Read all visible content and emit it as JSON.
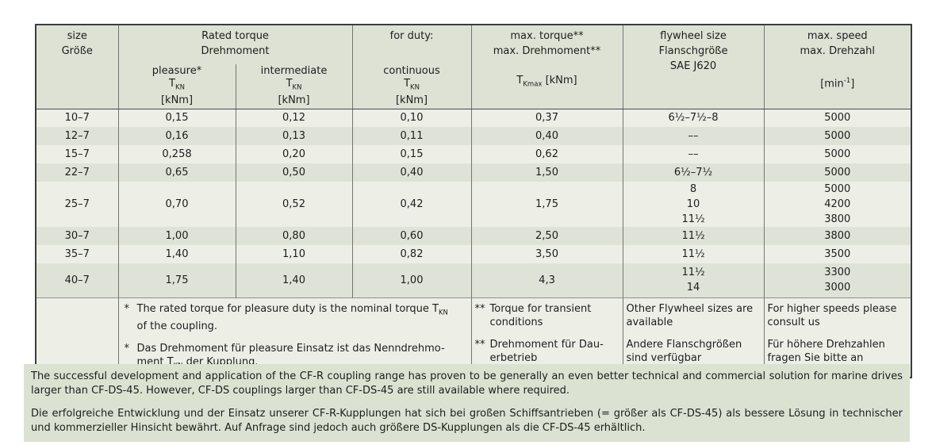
{
  "table": {
    "header": {
      "size": "size\nGröße",
      "rated_torque_group": "Rated torque\nDrehmoment",
      "pleasure": "pleasure*\nT~KN~\n[kNm]",
      "intermediate": "intermediate\nT~KN~\n[kNm]",
      "for_duty": "for duty:",
      "continuous": "continuous\nT~KN~\n[kNm]",
      "max_torque": "max. torque**\nmax. Drehmoment**",
      "max_torque_unit": "T~Kmax~ [kNm]",
      "flywheel": "flywheel size\nFlanschgröße\nSAE J620",
      "max_speed": "max. speed\nmax. Drehzahl",
      "max_speed_unit": "[min^-1^]"
    },
    "rows": [
      {
        "size": "10–7",
        "pleasure": "0,15",
        "intermediate": "0,12",
        "continuous": "0,10",
        "max_torque": "0,37",
        "flywheel": "6½–7½–8",
        "speed": "5000"
      },
      {
        "size": "12–7",
        "pleasure": "0,16",
        "intermediate": "0,13",
        "continuous": "0,11",
        "max_torque": "0,40",
        "flywheel": "––",
        "speed": "5000"
      },
      {
        "size": "15–7",
        "pleasure": "0,258",
        "intermediate": "0,20",
        "continuous": "0,15",
        "max_torque": "0,62",
        "flywheel": "––",
        "speed": "5000"
      },
      {
        "size": "22–7",
        "pleasure": "0,65",
        "intermediate": "0,50",
        "continuous": "0,40",
        "max_torque": "1,50",
        "flywheel": "6½–7½",
        "speed": "5000"
      },
      {
        "size": "25–7",
        "pleasure": "0,70",
        "intermediate": "0,52",
        "continuous": "0,42",
        "max_torque": "1,75",
        "flywheel": "8\n10\n11½",
        "speed": "5000\n4200\n3800"
      },
      {
        "size": "30–7",
        "pleasure": "1,00",
        "intermediate": "0,80",
        "continuous": "0,60",
        "max_torque": "2,50",
        "flywheel": "11½",
        "speed": "3800"
      },
      {
        "size": "35–7",
        "pleasure": "1,40",
        "intermediate": "1,10",
        "continuous": "0,82",
        "max_torque": "3,50",
        "flywheel": "11½",
        "speed": "3500"
      },
      {
        "size": "40–7",
        "pleasure": "1,75",
        "intermediate": "1,40",
        "continuous": "1,00",
        "max_torque": "4,3",
        "flywheel": "11½\n14",
        "speed": "3300\n3000"
      }
    ],
    "footnotes": {
      "rated": [
        {
          "marker": "*",
          "text": "The rated torque for pleasure duty is the nominal torque T~KN~\nof the coupling."
        },
        {
          "marker": "*",
          "text": "Das Drehmoment für pleasure Einsatz ist das Nenndrehmo-\nment T~KN~ der Kupplung."
        }
      ],
      "max_torque": [
        {
          "marker": "**",
          "text": "Torque for transient\nconditions"
        },
        {
          "marker": "**",
          "text": "Drehmoment für Dau-\nerbetrieb"
        }
      ],
      "flywheel": [
        "Other Flywheel sizes are\navailable",
        "Andere Flanschgrößen\nsind verfügbar"
      ],
      "speed": [
        "For higher speeds please\nconsult us",
        "Für höhere Drehzahlen\nfragen Sie bitte an"
      ]
    }
  },
  "paragraphs": {
    "en": "The successful development and application of the CF-R coupling range has proven to be generally an even better technical and commercial solution for marine drives larger than CF-DS-45. However, CF-DS couplings larger than CF-DS-45 are still available where required.",
    "de": "Die erfolgreiche Entwicklung und der Einsatz unserer CF-R-Kupplungen hat sich bei großen Schiffsantrieben (= größer als CF-DS-45) als bessere Lösung in technischer und kommerzieller Hinsicht bewährt. Auf Anfrage sind jedoch auch größere DS-Kupplungen als die CF-DS-45 erhältlich."
  },
  "colors": {
    "header_bg": "#dde2d5",
    "row_light": "#edefe7",
    "row_dark": "#dfe3d7",
    "footnote_bg": "#edefe7",
    "bottom_block_bg": "#dbe2d2",
    "border_outer": "#3c3c3c",
    "border_inner": "#757575",
    "text": "#1d1d1d"
  }
}
